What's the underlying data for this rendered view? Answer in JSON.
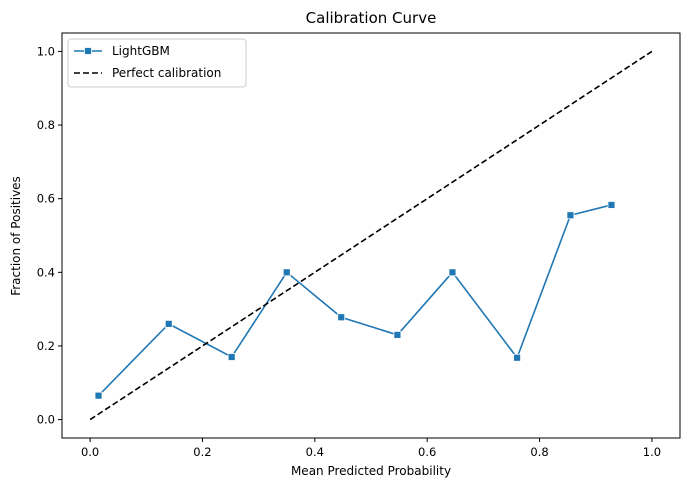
{
  "chart_data": {
    "type": "line",
    "title": "Calibration Curve",
    "xlabel": "Mean Predicted Probability",
    "ylabel": "Fraction of Positives",
    "xlim": [
      -0.05,
      1.05
    ],
    "ylim": [
      -0.05,
      1.05
    ],
    "xticks": [
      0.0,
      0.2,
      0.4,
      0.6,
      0.8,
      1.0
    ],
    "yticks": [
      0.0,
      0.2,
      0.4,
      0.6,
      0.8,
      1.0
    ],
    "xtick_labels": [
      "0.0",
      "0.2",
      "0.4",
      "0.6",
      "0.8",
      "1.0"
    ],
    "ytick_labels": [
      "0.0",
      "0.2",
      "0.4",
      "0.6",
      "0.8",
      "1.0"
    ],
    "grid": false,
    "legend_position": "top-left",
    "series": [
      {
        "name": "LightGBM",
        "color": "#1f77b4",
        "marker": "square",
        "line_style": "solid",
        "x": [
          0.015,
          0.14,
          0.252,
          0.35,
          0.447,
          0.547,
          0.645,
          0.76,
          0.855,
          0.928
        ],
        "y": [
          0.065,
          0.26,
          0.17,
          0.4,
          0.278,
          0.23,
          0.4,
          0.168,
          0.555,
          0.583
        ]
      },
      {
        "name": "Perfect calibration",
        "color": "#000000",
        "marker": "none",
        "line_style": "dashed",
        "x": [
          0.0,
          1.0
        ],
        "y": [
          0.0,
          1.0
        ]
      }
    ]
  }
}
